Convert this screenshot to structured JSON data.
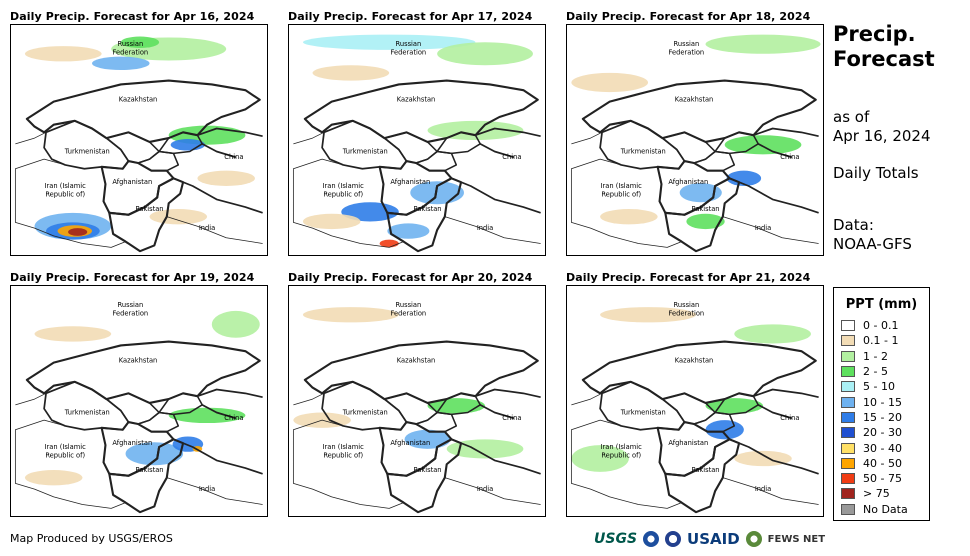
{
  "panels": [
    {
      "title": "Daily Precip. Forecast for Apr 16, 2024"
    },
    {
      "title": "Daily Precip. Forecast for Apr 17, 2024"
    },
    {
      "title": "Daily Precip. Forecast for Apr 18, 2024"
    },
    {
      "title": "Daily Precip. Forecast for Apr 19, 2024"
    },
    {
      "title": "Daily Precip. Forecast for Apr 20, 2024"
    },
    {
      "title": "Daily Precip. Forecast for Apr 21, 2024"
    }
  ],
  "map_labels": {
    "russia": [
      "Russian",
      "Federation"
    ],
    "kazakhstan": "Kazakhstan",
    "turkmenistan": "Turkmenistan",
    "china": "China",
    "iran": [
      "Iran  (Islamic",
      "Republic of)"
    ],
    "afghanistan": "Afghanistan",
    "pakistan": "Pakistan",
    "india": "India"
  },
  "sidebar": {
    "title_line1": "Precip.",
    "title_line2": "Forecast",
    "asof_line1": "as of",
    "asof_line2": "Apr 16, 2024",
    "daily_totals": "Daily Totals",
    "data_line1": "Data:",
    "data_line2": "NOAA-GFS"
  },
  "legend": {
    "title": "PPT (mm)",
    "items": [
      {
        "label": "0 - 0.1",
        "color": "#ffffff"
      },
      {
        "label": "0.1 - 1",
        "color": "#f2dcb5"
      },
      {
        "label": "1 - 2",
        "color": "#b2f0a0"
      },
      {
        "label": "2 - 5",
        "color": "#5ee05e"
      },
      {
        "label": "5 - 10",
        "color": "#aaf0f5"
      },
      {
        "label": "10 - 15",
        "color": "#6fb2f0"
      },
      {
        "label": "15 - 20",
        "color": "#2f7de8"
      },
      {
        "label": "20 - 30",
        "color": "#1f4fd0"
      },
      {
        "label": "30 - 40",
        "color": "#ffe066"
      },
      {
        "label": "40 - 50",
        "color": "#ffa500"
      },
      {
        "label": "50 - 75",
        "color": "#f03c14"
      },
      {
        "label": "> 75",
        "color": "#a0241e"
      },
      {
        "label": "No Data",
        "color": "#999999"
      }
    ]
  },
  "footer": {
    "credit": "Map Produced by USGS/EROS",
    "logo_usgs": "USGS",
    "logo_usaid": "USAID",
    "logo_fews": "FEWS NET"
  }
}
